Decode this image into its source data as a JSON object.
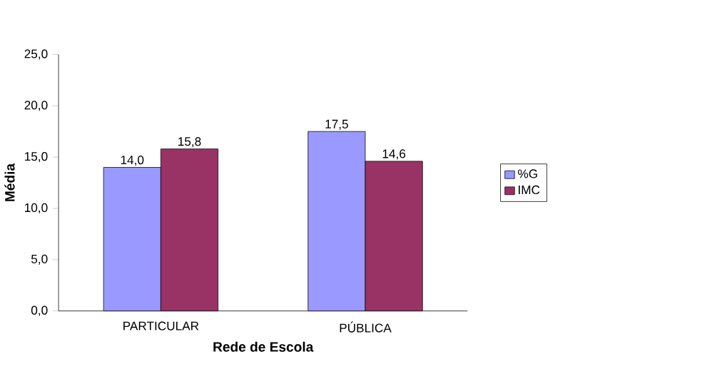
{
  "chart_data": {
    "type": "bar",
    "xlabel": "Rede de Escola",
    "ylabel": "Média",
    "categories": [
      "PARTICULAR",
      "PÚBLICA"
    ],
    "series": [
      {
        "name": "%G",
        "color": "#9999ff",
        "values": [
          14.0,
          17.5
        ],
        "value_labels": [
          "14,0",
          "17,5"
        ]
      },
      {
        "name": "IMC",
        "color": "#993366",
        "values": [
          15.8,
          14.6
        ],
        "value_labels": [
          "15,8",
          "14,6"
        ]
      }
    ],
    "ylim": [
      0,
      25
    ],
    "yticks": [
      {
        "value": 0,
        "label": "0,0"
      },
      {
        "value": 5,
        "label": "5,0"
      },
      {
        "value": 10,
        "label": "10,0"
      },
      {
        "value": 15,
        "label": "15,0"
      },
      {
        "value": 20,
        "label": "20,0"
      },
      {
        "value": 25,
        "label": "25,0"
      }
    ],
    "grid": false,
    "legend": "right"
  }
}
